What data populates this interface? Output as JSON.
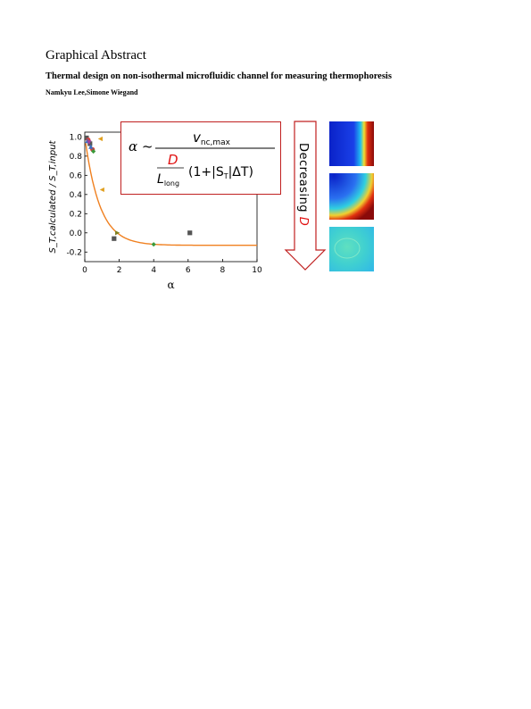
{
  "page": {
    "heading": "Graphical Abstract",
    "title": "Thermal design on non-isothermal microfluidic channel for measuring thermophoresis",
    "authors": "Namkyu Lee,Simone Wiegand"
  },
  "chart_data": {
    "type": "scatter",
    "xlabel": "α",
    "ylabel": "S_T,calculated / S_T,input",
    "xlim": [
      0,
      10
    ],
    "ylim": [
      -0.3,
      1.05
    ],
    "xticks": [
      "0",
      "2",
      "4",
      "6",
      "8",
      "10"
    ],
    "yticks": [
      "-0.2",
      "0.0",
      "0.2",
      "0.4",
      "0.6",
      "0.8",
      "1.0"
    ],
    "series": [
      {
        "marker": "square",
        "color": "#555555",
        "points": [
          [
            0.1,
            0.99
          ],
          [
            0.3,
            0.93
          ],
          [
            1.7,
            -0.06
          ],
          [
            6.1,
            0.0
          ]
        ]
      },
      {
        "marker": "circle",
        "color": "#d04040",
        "points": [
          [
            0.2,
            0.97
          ],
          [
            0.45,
            0.87
          ]
        ]
      },
      {
        "marker": "triangle-up",
        "color": "#3a6fc0",
        "points": [
          [
            0.15,
            0.96
          ],
          [
            0.35,
            0.9
          ]
        ]
      },
      {
        "marker": "triangle-down",
        "color": "#9a40a0",
        "points": [
          [
            0.25,
            0.94
          ]
        ]
      },
      {
        "marker": "diamond",
        "color": "#3a9a3a",
        "points": [
          [
            0.5,
            0.85
          ],
          [
            4.0,
            -0.12
          ]
        ]
      },
      {
        "marker": "triangle-left",
        "color": "#e0a020",
        "points": [
          [
            1.0,
            0.45
          ],
          [
            0.9,
            0.98
          ]
        ]
      },
      {
        "marker": "triangle-right",
        "color": "#808020",
        "points": [
          [
            1.9,
            0.0
          ]
        ]
      }
    ],
    "fit_curve": {
      "color": "#f08020",
      "style": "dashed-solid",
      "asymptote": -0.13
    }
  },
  "formula": {
    "lhs": "α ~",
    "numerator": "v",
    "numerator_sub": "nc,max",
    "den_D": "D",
    "den_L": "L",
    "den_L_sub": "long",
    "den_rest": "(1+|S",
    "den_rest_sub": "T",
    "den_rest_tail": "|ΔT)"
  },
  "arrow": {
    "text": "Decreasing ",
    "symbol": "D"
  }
}
